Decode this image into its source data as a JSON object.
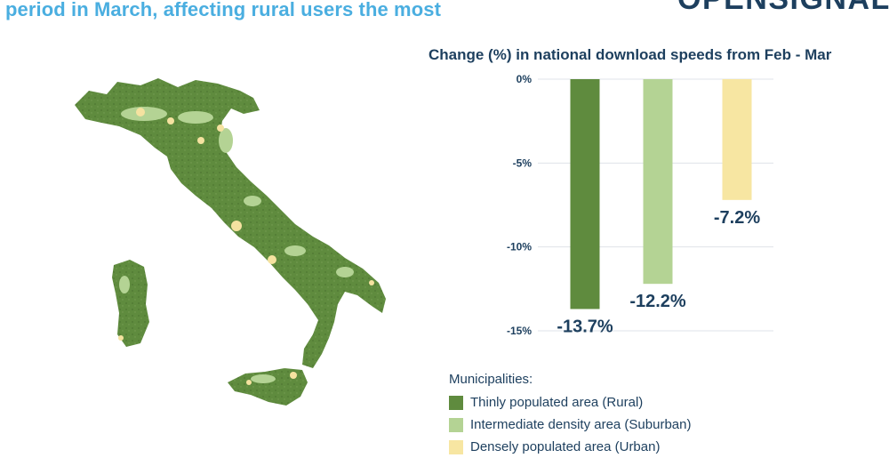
{
  "header": {
    "headline": "period in March, affecting rural users the most",
    "brand": "OPENSIGNAL"
  },
  "map": {
    "icon": "italy-municipalities-map",
    "colors": {
      "rural": "#5f8b3e",
      "suburban": "#b4d394",
      "urban": "#f5e2a0"
    }
  },
  "chart_data": {
    "type": "bar",
    "title": "Change (%) in national download speeds from Feb - Mar",
    "categories": [
      "Thinly populated area (Rural)",
      "Intermediate density area (Suburban)",
      "Densely populated area (Urban)"
    ],
    "values": [
      -13.7,
      -12.2,
      -7.2
    ],
    "data_labels": [
      "-13.7%",
      "-12.2%",
      "-7.2%"
    ],
    "colors": [
      "#5f8b3e",
      "#b4d394",
      "#f7e6a2"
    ],
    "yticks": [
      0,
      -5,
      -10,
      -15
    ],
    "ytick_labels": [
      "0%",
      "-5%",
      "-10%",
      "-15%"
    ],
    "ylim": [
      -15,
      0
    ],
    "grid": false
  },
  "legend": {
    "title": "Municipalities:",
    "items": [
      {
        "label": "Thinly populated area (Rural)",
        "color": "#5f8b3e"
      },
      {
        "label": "Intermediate density area (Suburban)",
        "color": "#b4d394"
      },
      {
        "label": "Densely populated area (Urban)",
        "color": "#f7e6a2"
      }
    ]
  }
}
